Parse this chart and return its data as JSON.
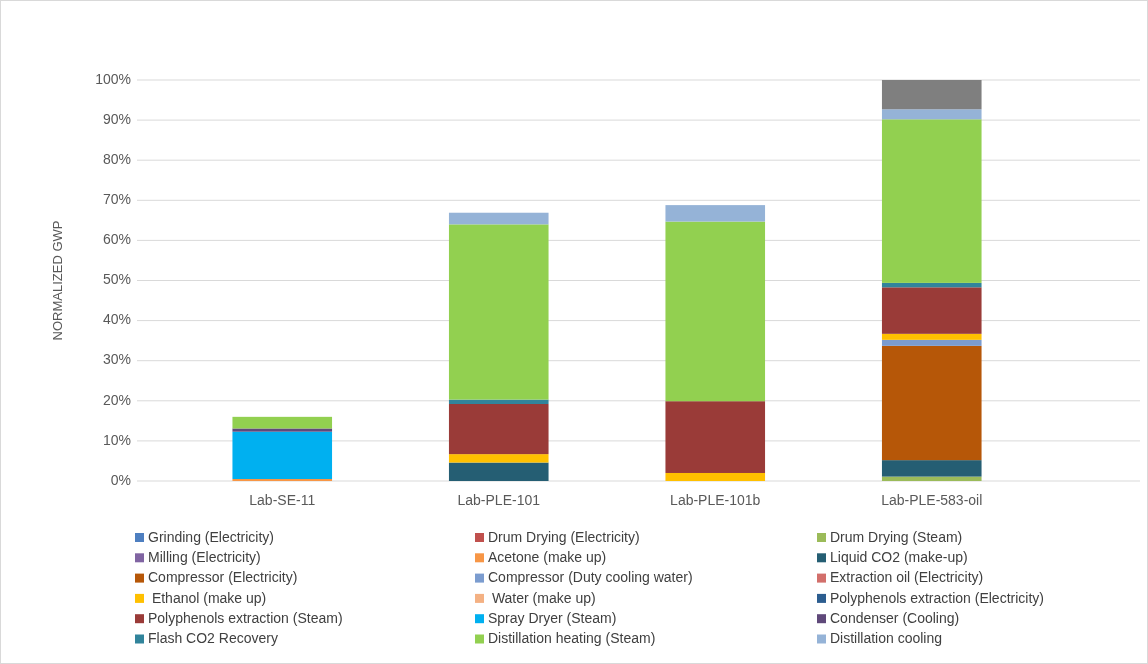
{
  "chart_data": {
    "type": "bar",
    "stacked": true,
    "ylabel": "NORMALIZED GWP",
    "categories": [
      "Lab-SE-11",
      "Lab-PLE-101",
      "Lab-PLE-101b",
      "Lab-PLE-583-oil"
    ],
    "ylim": [
      0,
      100
    ],
    "yticks": [
      {
        "value": 0,
        "label": "0%"
      },
      {
        "value": 10,
        "label": "10%"
      },
      {
        "value": 20,
        "label": "20%"
      },
      {
        "value": 30,
        "label": "30%"
      },
      {
        "value": 40,
        "label": "40%"
      },
      {
        "value": 50,
        "label": "50%"
      },
      {
        "value": 60,
        "label": "60%"
      },
      {
        "value": 70,
        "label": "70%"
      },
      {
        "value": 80,
        "label": "80%"
      },
      {
        "value": 90,
        "label": "90%"
      },
      {
        "value": 100,
        "label": "100%"
      }
    ],
    "grid": "y",
    "legend": "bottom",
    "series": [
      {
        "name": "Grinding (Electricity)",
        "color": "#4e7fc0",
        "values": [
          0,
          0,
          0,
          0
        ]
      },
      {
        "name": "Drum Drying (Electricity)",
        "color": "#c0504d",
        "values": [
          0,
          0,
          0,
          0
        ]
      },
      {
        "name": "Drum Drying (Steam)",
        "color": "#9bbb59",
        "values": [
          0,
          0,
          0,
          1.1
        ]
      },
      {
        "name": "Milling (Electricity)",
        "color": "#8064a2",
        "values": [
          0,
          0,
          0,
          0
        ]
      },
      {
        "name": "Acetone (make up)",
        "color": "#f79646",
        "values": [
          0.5,
          0,
          0,
          0
        ]
      },
      {
        "name": "Liquid CO2 (make-up)",
        "color": "#255e73",
        "values": [
          0,
          4.6,
          0,
          4.1
        ]
      },
      {
        "name": "Compressor (Electricity)",
        "color": "#b65708",
        "values": [
          0,
          0,
          0,
          28.5
        ]
      },
      {
        "name": "Compressor (Duty cooling water)",
        "color": "#7b9ccf",
        "values": [
          0,
          0,
          0,
          1.5
        ]
      },
      {
        "name": "Extraction oil (Electricity)",
        "color": "#d26f6b",
        "values": [
          0,
          0,
          0,
          0
        ]
      },
      {
        "name": " Ethanol (make up)",
        "color": "#ffc000",
        "values": [
          0,
          2.1,
          2.0,
          1.5
        ]
      },
      {
        "name": " Water (make up)",
        "color": "#f4b183",
        "values": [
          0,
          0,
          0,
          0
        ]
      },
      {
        "name": "Polyphenols extraction (Electricity)",
        "color": "#2c5d8f",
        "values": [
          0,
          0,
          0,
          0
        ]
      },
      {
        "name": "Polyphenols extraction (Steam)",
        "color": "#9a3b38",
        "values": [
          0,
          12.5,
          17.9,
          11.6
        ]
      },
      {
        "name": "Spray Dryer (Steam)",
        "color": "#00b0f0",
        "values": [
          11.8,
          0,
          0,
          0
        ]
      },
      {
        "name": "Condenser (Cooling)",
        "color": "#5f497a",
        "values": [
          0.8,
          0,
          0,
          0
        ]
      },
      {
        "name": "Flash CO2 Recovery",
        "color": "#31849b",
        "values": [
          0,
          1.1,
          0,
          1.1
        ]
      },
      {
        "name": "Distillation heating (Steam)",
        "color": "#92d050",
        "values": [
          2.9,
          43.7,
          44.8,
          40.8
        ]
      },
      {
        "name": "Distillation cooling",
        "color": "#95b3d7",
        "values": [
          0,
          2.9,
          4.1,
          2.5
        ]
      },
      {
        "color": "#7f7f7f",
        "values": [
          0,
          0,
          0,
          7.3
        ]
      }
    ]
  }
}
